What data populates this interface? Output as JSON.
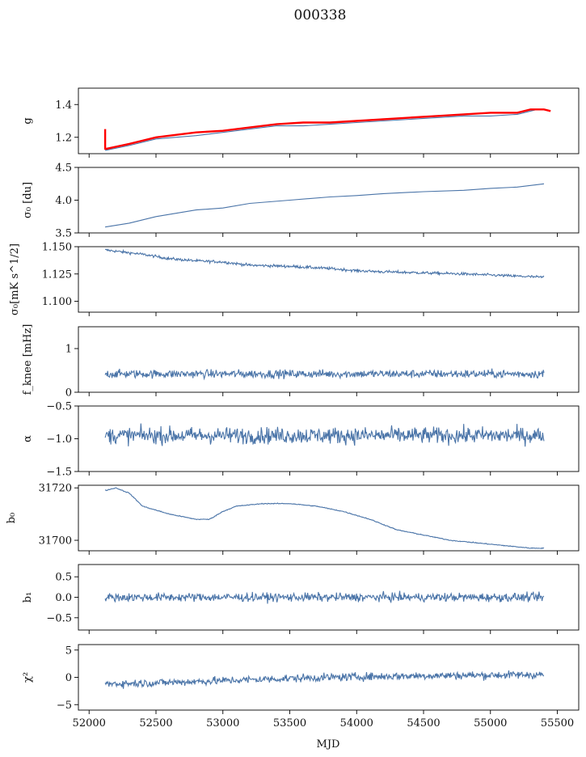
{
  "title": "000338",
  "xlabel": "MJD",
  "xticks": [
    "52000",
    "52500",
    "53000",
    "53500",
    "54000",
    "54500",
    "55000",
    "55500"
  ],
  "colors": {
    "series": "#4a74a8",
    "g_overlay": "#ff0000",
    "axis": "#000000"
  },
  "chart_data": [
    {
      "type": "line",
      "ylabel": "g",
      "xlim": [
        51920,
        55660
      ],
      "ylim": [
        1.1,
        1.5
      ],
      "yticks": [
        "1.2",
        "1.4"
      ],
      "ytick_values": [
        1.2,
        1.4
      ],
      "series": [
        {
          "color": "#4a74a8",
          "x": [
            52120,
            52300,
            52500,
            52800,
            53000,
            53200,
            53400,
            53600,
            53800,
            54000,
            54200,
            54400,
            54600,
            54800,
            55000,
            55200,
            55350
          ],
          "y": [
            1.12,
            1.15,
            1.19,
            1.21,
            1.23,
            1.25,
            1.27,
            1.27,
            1.28,
            1.29,
            1.3,
            1.31,
            1.32,
            1.33,
            1.33,
            1.34,
            1.37
          ]
        },
        {
          "color": "#ff0000",
          "x": [
            52120,
            52120,
            52130,
            52300,
            52500,
            52800,
            53000,
            53200,
            53400,
            53600,
            53800,
            54000,
            54200,
            54400,
            54600,
            54800,
            55000,
            55200,
            55300,
            55400,
            55450
          ],
          "y": [
            1.25,
            1.13,
            1.13,
            1.16,
            1.2,
            1.23,
            1.24,
            1.26,
            1.28,
            1.29,
            1.29,
            1.3,
            1.31,
            1.32,
            1.33,
            1.34,
            1.35,
            1.35,
            1.37,
            1.37,
            1.36
          ]
        }
      ]
    },
    {
      "type": "line",
      "ylabel": "σ₀ [du]",
      "xlim": [
        51920,
        55660
      ],
      "ylim": [
        3.5,
        4.5
      ],
      "yticks": [
        "3.5",
        "4.0",
        "4.5"
      ],
      "ytick_values": [
        3.5,
        4.0,
        4.5
      ],
      "series": [
        {
          "color": "#4a74a8",
          "x": [
            52120,
            52300,
            52500,
            52800,
            53000,
            53200,
            53500,
            53800,
            54000,
            54200,
            54500,
            54800,
            55000,
            55200,
            55400
          ],
          "y": [
            3.59,
            3.65,
            3.75,
            3.85,
            3.88,
            3.95,
            4.0,
            4.05,
            4.07,
            4.1,
            4.13,
            4.15,
            4.18,
            4.2,
            4.25
          ]
        }
      ]
    },
    {
      "type": "line",
      "ylabel": "σ₀[mK s^1/2]",
      "xlim": [
        51920,
        55660
      ],
      "ylim": [
        1.09,
        1.15
      ],
      "yticks": [
        "1.100",
        "1.125",
        "1.150"
      ],
      "ytick_values": [
        1.1,
        1.125,
        1.15
      ],
      "series": [
        {
          "color": "#4a74a8",
          "noise": 0.0012,
          "x": [
            52120,
            52400,
            52600,
            52800,
            53000,
            53200,
            53500,
            53800,
            54000,
            54200,
            54500,
            54800,
            55000,
            55200,
            55400
          ],
          "y": [
            1.147,
            1.143,
            1.139,
            1.137,
            1.136,
            1.133,
            1.132,
            1.13,
            1.128,
            1.127,
            1.126,
            1.125,
            1.124,
            1.123,
            1.122
          ]
        }
      ]
    },
    {
      "type": "line",
      "ylabel": "f_knee [mHz]",
      "xlim": [
        51920,
        55660
      ],
      "ylim": [
        0,
        1.5
      ],
      "yticks": [
        "0",
        "1"
      ],
      "ytick_values": [
        0,
        1
      ],
      "series": [
        {
          "color": "#4a74a8",
          "noise": 0.09,
          "x": [
            52120,
            55400
          ],
          "y": [
            0.42,
            0.42
          ]
        }
      ]
    },
    {
      "type": "line",
      "ylabel": "α",
      "xlim": [
        51920,
        55660
      ],
      "ylim": [
        -1.5,
        -0.5
      ],
      "yticks": [
        "−1.5",
        "−1.0",
        "−0.5"
      ],
      "ytick_values": [
        -1.5,
        -1.0,
        -0.5
      ],
      "series": [
        {
          "color": "#4a74a8",
          "noise": 0.12,
          "x": [
            52120,
            55400
          ],
          "y": [
            -0.95,
            -0.95
          ]
        }
      ]
    },
    {
      "type": "line",
      "ylabel": "b₀",
      "xlim": [
        51920,
        55660
      ],
      "ylim": [
        31696,
        31721
      ],
      "yticks": [
        "31700",
        "31720"
      ],
      "ytick_values": [
        31700,
        31720
      ],
      "series": [
        {
          "color": "#4a74a8",
          "noise": 0.15,
          "x": [
            52120,
            52200,
            52300,
            52400,
            52600,
            52800,
            52900,
            53000,
            53100,
            53300,
            53500,
            53700,
            53900,
            54100,
            54300,
            54500,
            54700,
            54900,
            55100,
            55300,
            55400
          ],
          "y": [
            31719,
            31720,
            31718,
            31713,
            31710,
            31708,
            31708,
            31711,
            31713,
            31714,
            31714,
            31713,
            31711,
            31708,
            31704,
            31702,
            31700,
            31699,
            31698,
            31697,
            31697
          ]
        }
      ]
    },
    {
      "type": "line",
      "ylabel": "b₁",
      "xlim": [
        51920,
        55660
      ],
      "ylim": [
        -0.8,
        0.8
      ],
      "yticks": [
        "−0.5",
        "0.0",
        "0.5"
      ],
      "ytick_values": [
        -0.5,
        0.0,
        0.5
      ],
      "series": [
        {
          "color": "#4a74a8",
          "noise": 0.1,
          "x": [
            52120,
            55400
          ],
          "y": [
            0.0,
            0.0
          ]
        }
      ]
    },
    {
      "type": "line",
      "ylabel": "χ²",
      "xlim": [
        51920,
        55660
      ],
      "ylim": [
        -6,
        6
      ],
      "yticks": [
        "−5",
        "0",
        "5"
      ],
      "ytick_values": [
        -5,
        0,
        5
      ],
      "series": [
        {
          "color": "#4a74a8",
          "noise": 0.7,
          "x": [
            52120,
            52500,
            53000,
            53500,
            54000,
            54500,
            55000,
            55400
          ],
          "y": [
            -1.2,
            -1.0,
            -0.6,
            -0.2,
            0.1,
            0.3,
            0.4,
            0.5
          ]
        }
      ]
    }
  ]
}
